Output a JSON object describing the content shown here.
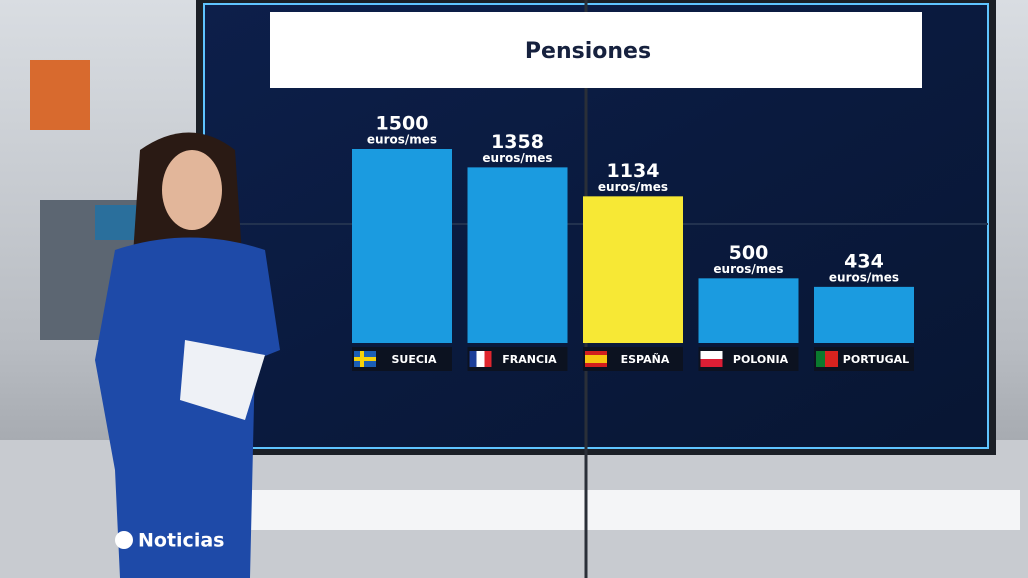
{
  "chart_data": {
    "type": "bar",
    "title": "Pensiones",
    "categories": [
      "SUECIA",
      "FRANCIA",
      "ESPAÑA",
      "POLONIA",
      "PORTUGAL"
    ],
    "values": [
      1500,
      1358,
      1134,
      500,
      434
    ],
    "unit_label": "euros/mes",
    "colors": [
      "#1b9be0",
      "#1b9be0",
      "#f7e835",
      "#1b9be0",
      "#1b9be0"
    ]
  },
  "logo": {
    "text": "Noticias"
  }
}
